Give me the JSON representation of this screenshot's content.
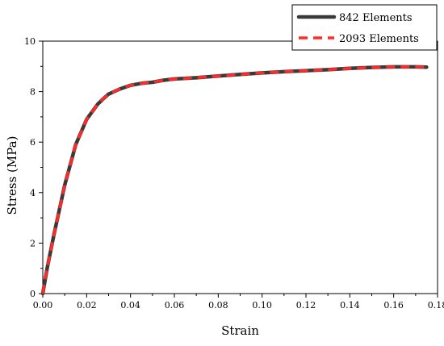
{
  "chart_data": {
    "type": "line",
    "title": "",
    "xlabel": "Strain",
    "ylabel": "Stress (MPa)",
    "xlim": [
      0,
      0.18
    ],
    "ylim": [
      0,
      10
    ],
    "xticks": [
      "0.00",
      "0.02",
      "0.04",
      "0.06",
      "0.08",
      "0.10",
      "0.12",
      "0.14",
      "0.16",
      "0.18"
    ],
    "yticks": [
      "0",
      "2",
      "4",
      "6",
      "8",
      "10"
    ],
    "grid": false,
    "legend_position": "top-right",
    "series": [
      {
        "name": "842 Elements",
        "color": "#3a3a3a",
        "style": "solid",
        "x": [
          0,
          0.002,
          0.005,
          0.01,
          0.015,
          0.018,
          0.02,
          0.025,
          0.028,
          0.03,
          0.035,
          0.04,
          0.045,
          0.05,
          0.055,
          0.06,
          0.07,
          0.08,
          0.09,
          0.1,
          0.11,
          0.12,
          0.13,
          0.14,
          0.15,
          0.16,
          0.17,
          0.175
        ],
        "y": [
          0,
          1.0,
          2.3,
          4.3,
          5.9,
          6.5,
          6.9,
          7.5,
          7.75,
          7.9,
          8.1,
          8.25,
          8.33,
          8.37,
          8.45,
          8.5,
          8.55,
          8.62,
          8.68,
          8.74,
          8.79,
          8.83,
          8.87,
          8.92,
          8.96,
          8.98,
          8.98,
          8.97
        ]
      },
      {
        "name": "2093 Elements",
        "color": "#ff2a2a",
        "style": "dashed",
        "x": [
          0,
          0.002,
          0.005,
          0.01,
          0.015,
          0.018,
          0.02,
          0.025,
          0.028,
          0.03,
          0.035,
          0.04,
          0.045,
          0.05,
          0.055,
          0.06,
          0.07,
          0.08,
          0.09,
          0.1,
          0.11,
          0.12,
          0.13,
          0.14,
          0.15,
          0.16,
          0.17,
          0.175
        ],
        "y": [
          0,
          1.0,
          2.3,
          4.3,
          5.9,
          6.5,
          6.9,
          7.5,
          7.75,
          7.9,
          8.1,
          8.25,
          8.33,
          8.37,
          8.45,
          8.5,
          8.55,
          8.62,
          8.68,
          8.74,
          8.79,
          8.83,
          8.87,
          8.92,
          8.96,
          8.98,
          8.98,
          8.97
        ]
      }
    ]
  }
}
